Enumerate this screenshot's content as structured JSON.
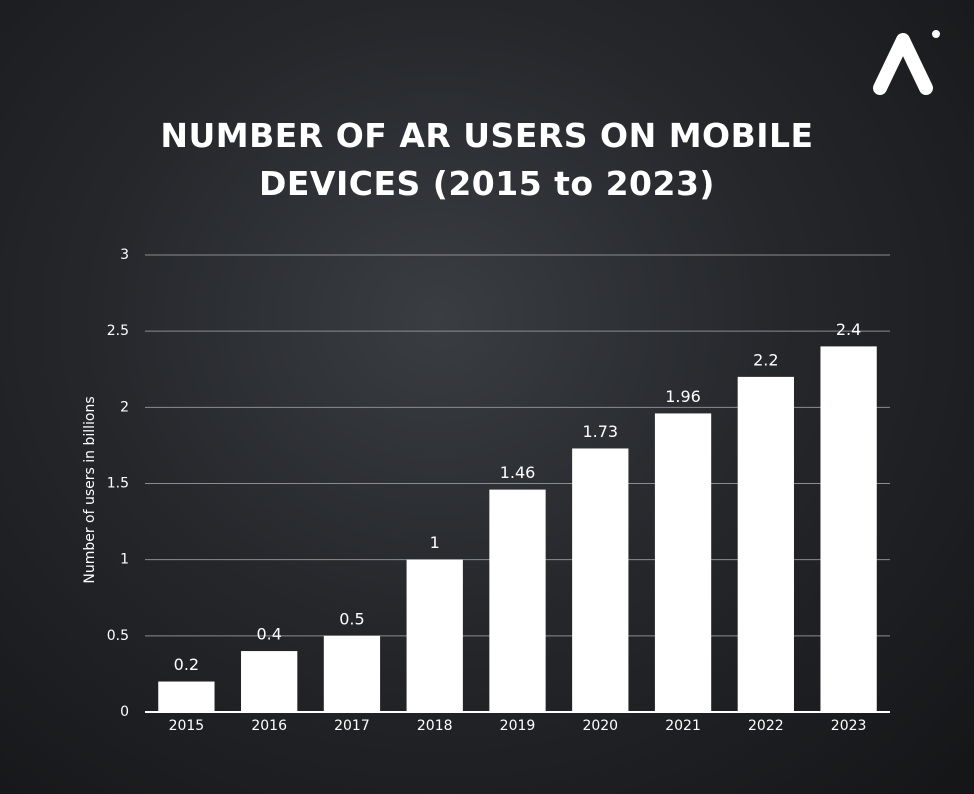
{
  "chart_data": {
    "type": "bar",
    "title": "NUMBER OF AR USERS ON MOBILE DEVICES (2015 to 2023)",
    "y_label": "Number of users in billions",
    "categories": [
      "2015",
      "2016",
      "2017",
      "2018",
      "2019",
      "2020",
      "2021",
      "2022",
      "2023"
    ],
    "values": [
      0.2,
      0.4,
      0.5,
      1,
      1.46,
      1.73,
      1.96,
      2.2,
      2.4
    ],
    "color": "#ffffff",
    "ylim": [
      0,
      3
    ],
    "yticks": [
      0,
      0.5,
      1,
      1.5,
      2,
      2.5,
      3
    ],
    "grid": true
  }
}
